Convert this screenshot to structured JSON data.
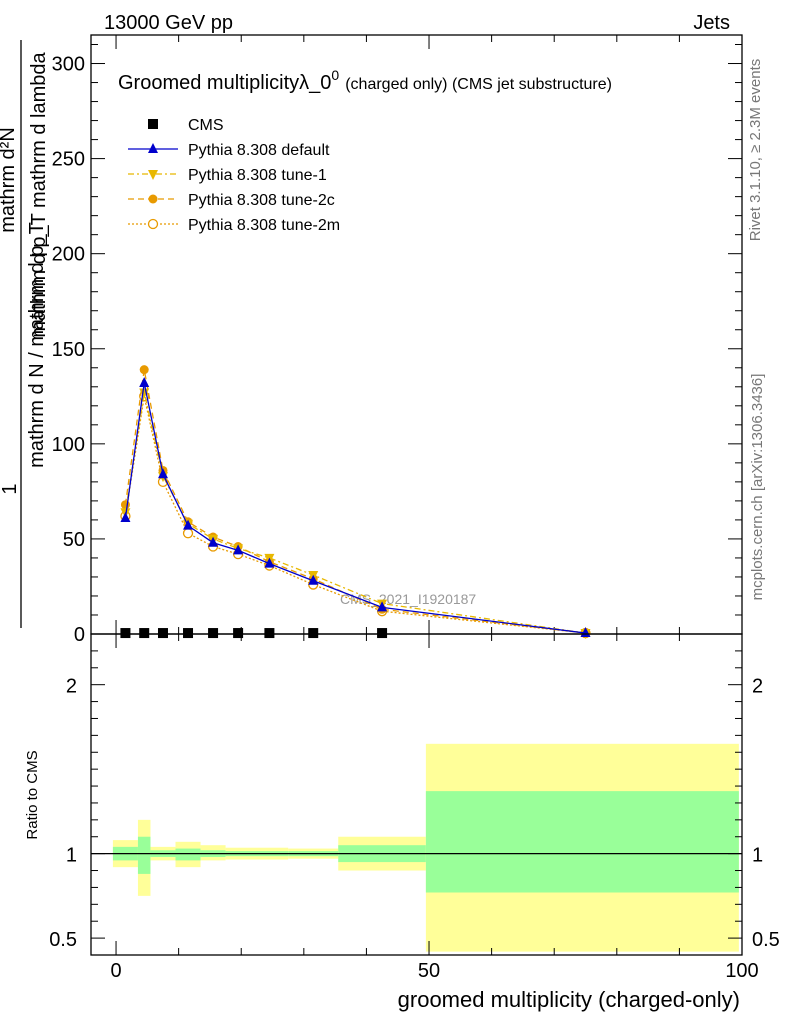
{
  "header": {
    "left": "13000 GeV pp",
    "right": "Jets"
  },
  "side_labels": {
    "rivet": "Rivet 3.1.10, ≥ 2.3M events",
    "mcplots": "mcplots.cern.ch [arXiv:1306.3436]"
  },
  "chart_data": [
    {
      "type": "line",
      "title_main": "Groomed multiplicityλ_0",
      "title_sup": "0",
      "title_note": "(charged only) (CMS jet substructure)",
      "ylabel": {
        "fraction_num": "1",
        "fraction_den": "mathrm d N / mathrm d p_T",
        "rhs_num": "mathrm d²N",
        "rhs_den": "mathrm d p_T mathrm d lambda"
      },
      "xlim": [
        -4,
        100
      ],
      "ylim": [
        0,
        315
      ],
      "yticks": [
        0,
        50,
        100,
        150,
        200,
        250,
        300
      ],
      "watermark": "CMS_2021_I1920187",
      "legend_position": "top-left",
      "series": [
        {
          "name": "CMS",
          "color": "#000000",
          "marker": "square",
          "x": [
            1.5,
            4.5,
            7.5,
            11.5,
            15.5,
            19.5,
            24.5,
            31.5,
            42.5
          ],
          "y": [
            0.5,
            0.5,
            0.5,
            0.5,
            0.5,
            0.5,
            0.5,
            0.5,
            0.5
          ]
        },
        {
          "name": "Pythia 8.308 default",
          "color": "#0000cc",
          "marker": "triangle-up",
          "dash": "",
          "x": [
            1.5,
            4.5,
            7.5,
            11.5,
            15.5,
            19.5,
            24.5,
            31.5,
            42.5,
            75
          ],
          "y": [
            61,
            132,
            84,
            57,
            48,
            44,
            37,
            28,
            14,
            0.5
          ]
        },
        {
          "name": "Pythia 8.308 tune-1",
          "color": "#e8b800",
          "marker": "triangle-down",
          "dash": "6,3,2,3",
          "x": [
            1.5,
            4.5,
            7.5,
            11.5,
            15.5,
            19.5,
            24.5,
            31.5,
            42.5,
            75
          ],
          "y": [
            64,
            127,
            83,
            58,
            50,
            45,
            40,
            31,
            16,
            0.5
          ]
        },
        {
          "name": "Pythia 8.308 tune-2c",
          "color": "#e89a00",
          "marker": "circle",
          "dash": "6,4",
          "x": [
            1.5,
            4.5,
            7.5,
            11.5,
            15.5,
            19.5,
            24.5,
            31.5,
            42.5,
            75
          ],
          "y": [
            68,
            139,
            86,
            59,
            51,
            46,
            38,
            29,
            13,
            0.5
          ]
        },
        {
          "name": "Pythia 8.308 tune-2m",
          "color": "#e89a00",
          "marker": "circle-open",
          "dash": "2,2",
          "x": [
            1.5,
            4.5,
            7.5,
            11.5,
            15.5,
            19.5,
            24.5,
            31.5,
            42.5,
            75
          ],
          "y": [
            62,
            125,
            80,
            53,
            46,
            42,
            36,
            26,
            12,
            0.5
          ]
        }
      ]
    },
    {
      "type": "area",
      "ylabel": "Ratio to CMS",
      "xlabel": "groomed multiplicity (charged-only)",
      "xlim": [
        -4,
        100
      ],
      "ylim": [
        0.4,
        2.3
      ],
      "yticks": [
        0.5,
        1,
        2
      ],
      "ytick_labels": [
        "0.5",
        "1",
        "2"
      ],
      "xticks": [
        0,
        50,
        100
      ],
      "ratio_line": 1,
      "inner_band_color": "#99ff99",
      "outer_band_color": "#ffff99",
      "bins": [
        {
          "xlo": -0.5,
          "xhi": 3.5,
          "inner": [
            0.96,
            1.04
          ],
          "outer": [
            0.92,
            1.08
          ]
        },
        {
          "xlo": 3.5,
          "xhi": 5.5,
          "inner": [
            0.88,
            1.1
          ],
          "outer": [
            0.75,
            1.2
          ]
        },
        {
          "xlo": 5.5,
          "xhi": 9.5,
          "inner": [
            0.98,
            1.02
          ],
          "outer": [
            0.96,
            1.04
          ]
        },
        {
          "xlo": 9.5,
          "xhi": 13.5,
          "inner": [
            0.96,
            1.03
          ],
          "outer": [
            0.92,
            1.07
          ]
        },
        {
          "xlo": 13.5,
          "xhi": 17.5,
          "inner": [
            0.98,
            1.02
          ],
          "outer": [
            0.96,
            1.05
          ]
        },
        {
          "xlo": 17.5,
          "xhi": 27.5,
          "inner": [
            0.985,
            1.015
          ],
          "outer": [
            0.965,
            1.035
          ]
        },
        {
          "xlo": 27.5,
          "xhi": 35.5,
          "inner": [
            0.985,
            1.015
          ],
          "outer": [
            0.97,
            1.03
          ]
        },
        {
          "xlo": 35.5,
          "xhi": 49.5,
          "inner": [
            0.95,
            1.05
          ],
          "outer": [
            0.9,
            1.1
          ]
        },
        {
          "xlo": 49.5,
          "xhi": 99.5,
          "inner": [
            0.77,
            1.37
          ],
          "outer": [
            0.42,
            1.65
          ]
        }
      ]
    }
  ]
}
